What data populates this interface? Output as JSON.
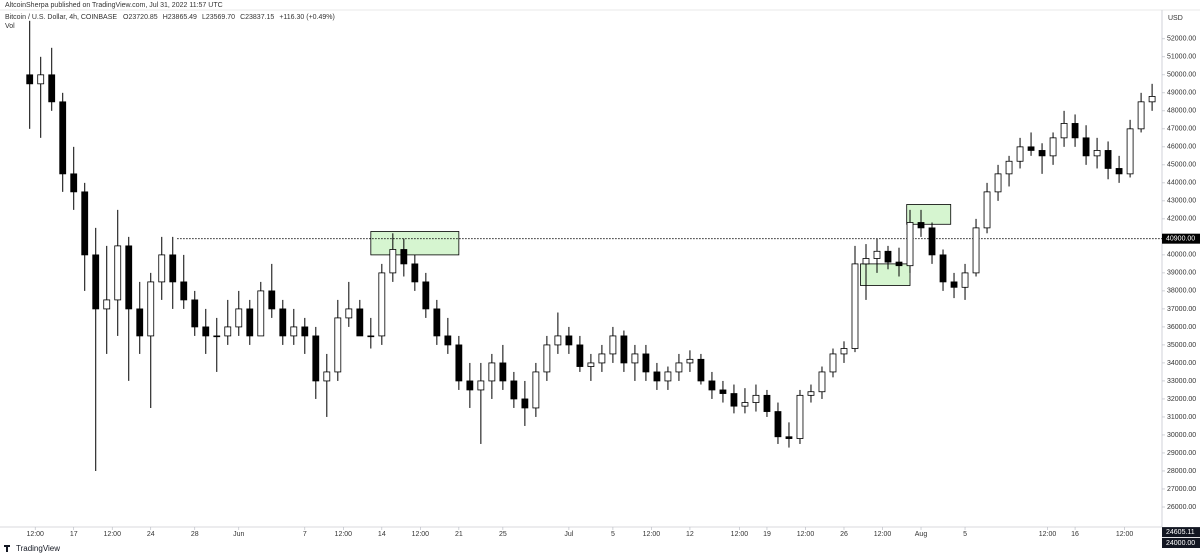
{
  "chart_data": {
    "type": "candlestick",
    "title": "Bitcoin / U.S. Dollar, 4h, COINBASE",
    "published": "AltcoinSherpa published on TradingView.com, Jul 31, 2022 11:57 UTC",
    "ohlc_legend": [
      "O23720.85",
      "H23865.49",
      "L23569.70",
      "C23837.15",
      "+116.30 (+0.49%)"
    ],
    "volume_label": "Vol",
    "currency": "USD",
    "brand": "TradingView",
    "open": [
      50000,
      49500,
      50000,
      48500,
      44500,
      43500,
      40000,
      37000,
      37500,
      40500,
      37000,
      35500,
      38500,
      40000,
      38500,
      37500,
      36000,
      35500,
      35500,
      36000,
      37000,
      35500,
      38000,
      37000,
      35500,
      36000,
      35500,
      33000,
      33500,
      36500,
      37000,
      35500,
      35500,
      39000,
      40300,
      39500,
      38500,
      37000,
      35500,
      35000,
      33000,
      32500,
      33000,
      34000,
      33000,
      32000,
      31500,
      33500,
      35000,
      35500,
      35000,
      33800,
      34000,
      34500,
      35500,
      34000,
      34500,
      33500,
      33000,
      33500,
      34000,
      34200,
      33000,
      32500,
      32300,
      31600,
      31800,
      32200,
      31300,
      29900,
      29800,
      32200,
      32400,
      33500,
      34500,
      34800,
      39500,
      39800,
      40200,
      39600,
      39400,
      41800,
      41500,
      40000,
      38500,
      38200,
      39000,
      41500,
      43500,
      44500,
      45200,
      46000,
      45800,
      45500,
      46500,
      47300,
      46500,
      45500,
      45800,
      44800,
      44500,
      47000,
      48500
    ],
    "high": [
      53000,
      51000,
      51500,
      49000,
      46000,
      44000,
      41500,
      40500,
      42500,
      41000,
      38500,
      39000,
      41000,
      41000,
      40000,
      38000,
      37000,
      36500,
      37500,
      38000,
      37500,
      38500,
      39500,
      37500,
      37000,
      36500,
      36000,
      34500,
      37500,
      38500,
      37500,
      36500,
      39500,
      41200,
      40900,
      40000,
      39000,
      37500,
      36500,
      35500,
      34000,
      34000,
      34500,
      35000,
      33500,
      33000,
      34000,
      35500,
      36800,
      36000,
      35500,
      34500,
      35000,
      36000,
      35800,
      35000,
      35000,
      34000,
      33800,
      34500,
      34700,
      34500,
      33500,
      33000,
      32800,
      32600,
      32800,
      32500,
      31800,
      30700,
      32500,
      32800,
      33800,
      34800,
      35200,
      40500,
      40600,
      40900,
      40500,
      40400,
      42500,
      42500,
      41800,
      40300,
      39000,
      39500,
      42000,
      44000,
      45000,
      45500,
      46500,
      46800,
      46200,
      46800,
      48000,
      47800,
      47200,
      46500,
      46300,
      45500,
      47500,
      49000,
      49500
    ],
    "low": [
      47000,
      46500,
      48000,
      43500,
      42500,
      38000,
      28000,
      34500,
      35500,
      33000,
      34500,
      31500,
      37500,
      37000,
      37000,
      35500,
      34500,
      33500,
      35000,
      35500,
      35000,
      35500,
      36500,
      35000,
      35000,
      34500,
      32000,
      31000,
      33000,
      36000,
      35500,
      34800,
      35000,
      38500,
      38800,
      38000,
      36500,
      35000,
      34500,
      32500,
      31500,
      29500,
      32000,
      32500,
      31500,
      30500,
      31000,
      33000,
      34500,
      34500,
      33500,
      33000,
      33500,
      34000,
      33500,
      33000,
      33000,
      32500,
      32500,
      33000,
      33500,
      32800,
      32000,
      31800,
      31200,
      31200,
      31300,
      31000,
      29500,
      29300,
      29500,
      31800,
      32000,
      33200,
      34000,
      34600,
      37500,
      39000,
      39200,
      38800,
      39000,
      41000,
      39500,
      38000,
      37600,
      37500,
      38800,
      41200,
      43000,
      43800,
      44800,
      45500,
      44500,
      45000,
      46000,
      46000,
      45000,
      44800,
      44200,
      44000,
      44300,
      46800,
      48000
    ],
    "close": [
      49500,
      50000,
      48500,
      44500,
      43500,
      40000,
      37000,
      37500,
      40500,
      37000,
      35500,
      38500,
      40000,
      38500,
      37500,
      36000,
      35500,
      35500,
      36000,
      37000,
      35500,
      38000,
      37000,
      35500,
      36000,
      35500,
      33000,
      33500,
      36500,
      37000,
      35500,
      35500,
      39000,
      40300,
      39500,
      38500,
      37000,
      35500,
      35000,
      33000,
      32500,
      33000,
      34000,
      33000,
      32000,
      31500,
      33500,
      35000,
      35500,
      35000,
      33800,
      34000,
      34500,
      35500,
      34000,
      34500,
      33500,
      33000,
      33500,
      34000,
      34200,
      33000,
      32500,
      32300,
      31600,
      31800,
      32200,
      31300,
      29900,
      29800,
      32200,
      32400,
      33500,
      34500,
      34800,
      39500,
      39800,
      40200,
      39600,
      39400,
      41800,
      41500,
      40000,
      38500,
      38200,
      39000,
      41500,
      43500,
      44500,
      45200,
      46000,
      45800,
      45500,
      46500,
      47300,
      46500,
      45500,
      45800,
      44800,
      44500,
      47000,
      48500,
      48800
    ],
    "up_color": "#ffffff",
    "down_color": "#000000",
    "xlim": [
      -0.7,
      102.9
    ],
    "xticks": [
      {
        "value": 0.5,
        "label": "12:00"
      },
      {
        "value": 4,
        "label": "17"
      },
      {
        "value": 7.5,
        "label": "12:00"
      },
      {
        "value": 11,
        "label": "24"
      },
      {
        "value": 15,
        "label": "28"
      },
      {
        "value": 19,
        "label": "Jun"
      },
      {
        "value": 25,
        "label": "7"
      },
      {
        "value": 28.5,
        "label": "12:00"
      },
      {
        "value": 32,
        "label": "14"
      },
      {
        "value": 35.5,
        "label": "12:00"
      },
      {
        "value": 39,
        "label": "21"
      },
      {
        "value": 43,
        "label": "25"
      },
      {
        "value": 49,
        "label": "Jul"
      },
      {
        "value": 53,
        "label": "5"
      },
      {
        "value": 56.5,
        "label": "12:00"
      },
      {
        "value": 60,
        "label": "12"
      },
      {
        "value": 64.5,
        "label": "12:00"
      },
      {
        "value": 67,
        "label": "19"
      },
      {
        "value": 70.5,
        "label": "12:00"
      },
      {
        "value": 74,
        "label": "26"
      },
      {
        "value": 77.5,
        "label": "12:00"
      },
      {
        "value": 81,
        "label": "Aug"
      },
      {
        "value": 85,
        "label": "5"
      },
      {
        "value": 92.5,
        "label": "12:00"
      },
      {
        "value": 95,
        "label": "16"
      },
      {
        "value": 99.5,
        "label": "12:00"
      }
    ],
    "ylim": [
      23500,
      53600
    ],
    "yticks": [
      {
        "value": 52000,
        "label": "52000.00"
      },
      {
        "value": 51000,
        "label": "51000.00"
      },
      {
        "value": 50000,
        "label": "50000.00"
      },
      {
        "value": 49000,
        "label": "49000.00"
      },
      {
        "value": 48000,
        "label": "48000.00"
      },
      {
        "value": 47000,
        "label": "47000.00"
      },
      {
        "value": 46000,
        "label": "46000.00"
      },
      {
        "value": 45000,
        "label": "45000.00"
      },
      {
        "value": 44000,
        "label": "44000.00"
      },
      {
        "value": 43000,
        "label": "43000.00"
      },
      {
        "value": 42000,
        "label": "42000.00"
      },
      {
        "value": 40000,
        "label": "40000.00"
      },
      {
        "value": 39000,
        "label": "39000.00"
      },
      {
        "value": 38000,
        "label": "38000.00"
      },
      {
        "value": 37000,
        "label": "37000.00"
      },
      {
        "value": 36000,
        "label": "36000.00"
      },
      {
        "value": 35000,
        "label": "35000.00"
      },
      {
        "value": 34000,
        "label": "34000.00"
      },
      {
        "value": 33000,
        "label": "33000.00"
      },
      {
        "value": 32000,
        "label": "32000.00"
      },
      {
        "value": 31000,
        "label": "31000.00"
      },
      {
        "value": 30000,
        "label": "30000.00"
      },
      {
        "value": 29000,
        "label": "29000.00"
      },
      {
        "value": 28000,
        "label": "28000.00"
      },
      {
        "value": 27000,
        "label": "27000.00"
      },
      {
        "value": 26000,
        "label": "26000.00"
      }
    ],
    "level": {
      "value": 40900,
      "label": "40900.00",
      "start": 13.4
    },
    "price_labels": [
      {
        "value": 24605.11,
        "label": "24605.11"
      },
      {
        "value": 24000,
        "label": "24000.00"
      }
    ],
    "zones": [
      {
        "x": [
          31,
          39
        ],
        "y": [
          40000,
          41300
        ]
      },
      {
        "x": [
          75.5,
          80
        ],
        "y": [
          38300,
          39500
        ]
      },
      {
        "x": [
          79.7,
          83.7
        ],
        "y": [
          41700,
          42800
        ]
      }
    ],
    "zone_color": "#d6f5d0"
  }
}
